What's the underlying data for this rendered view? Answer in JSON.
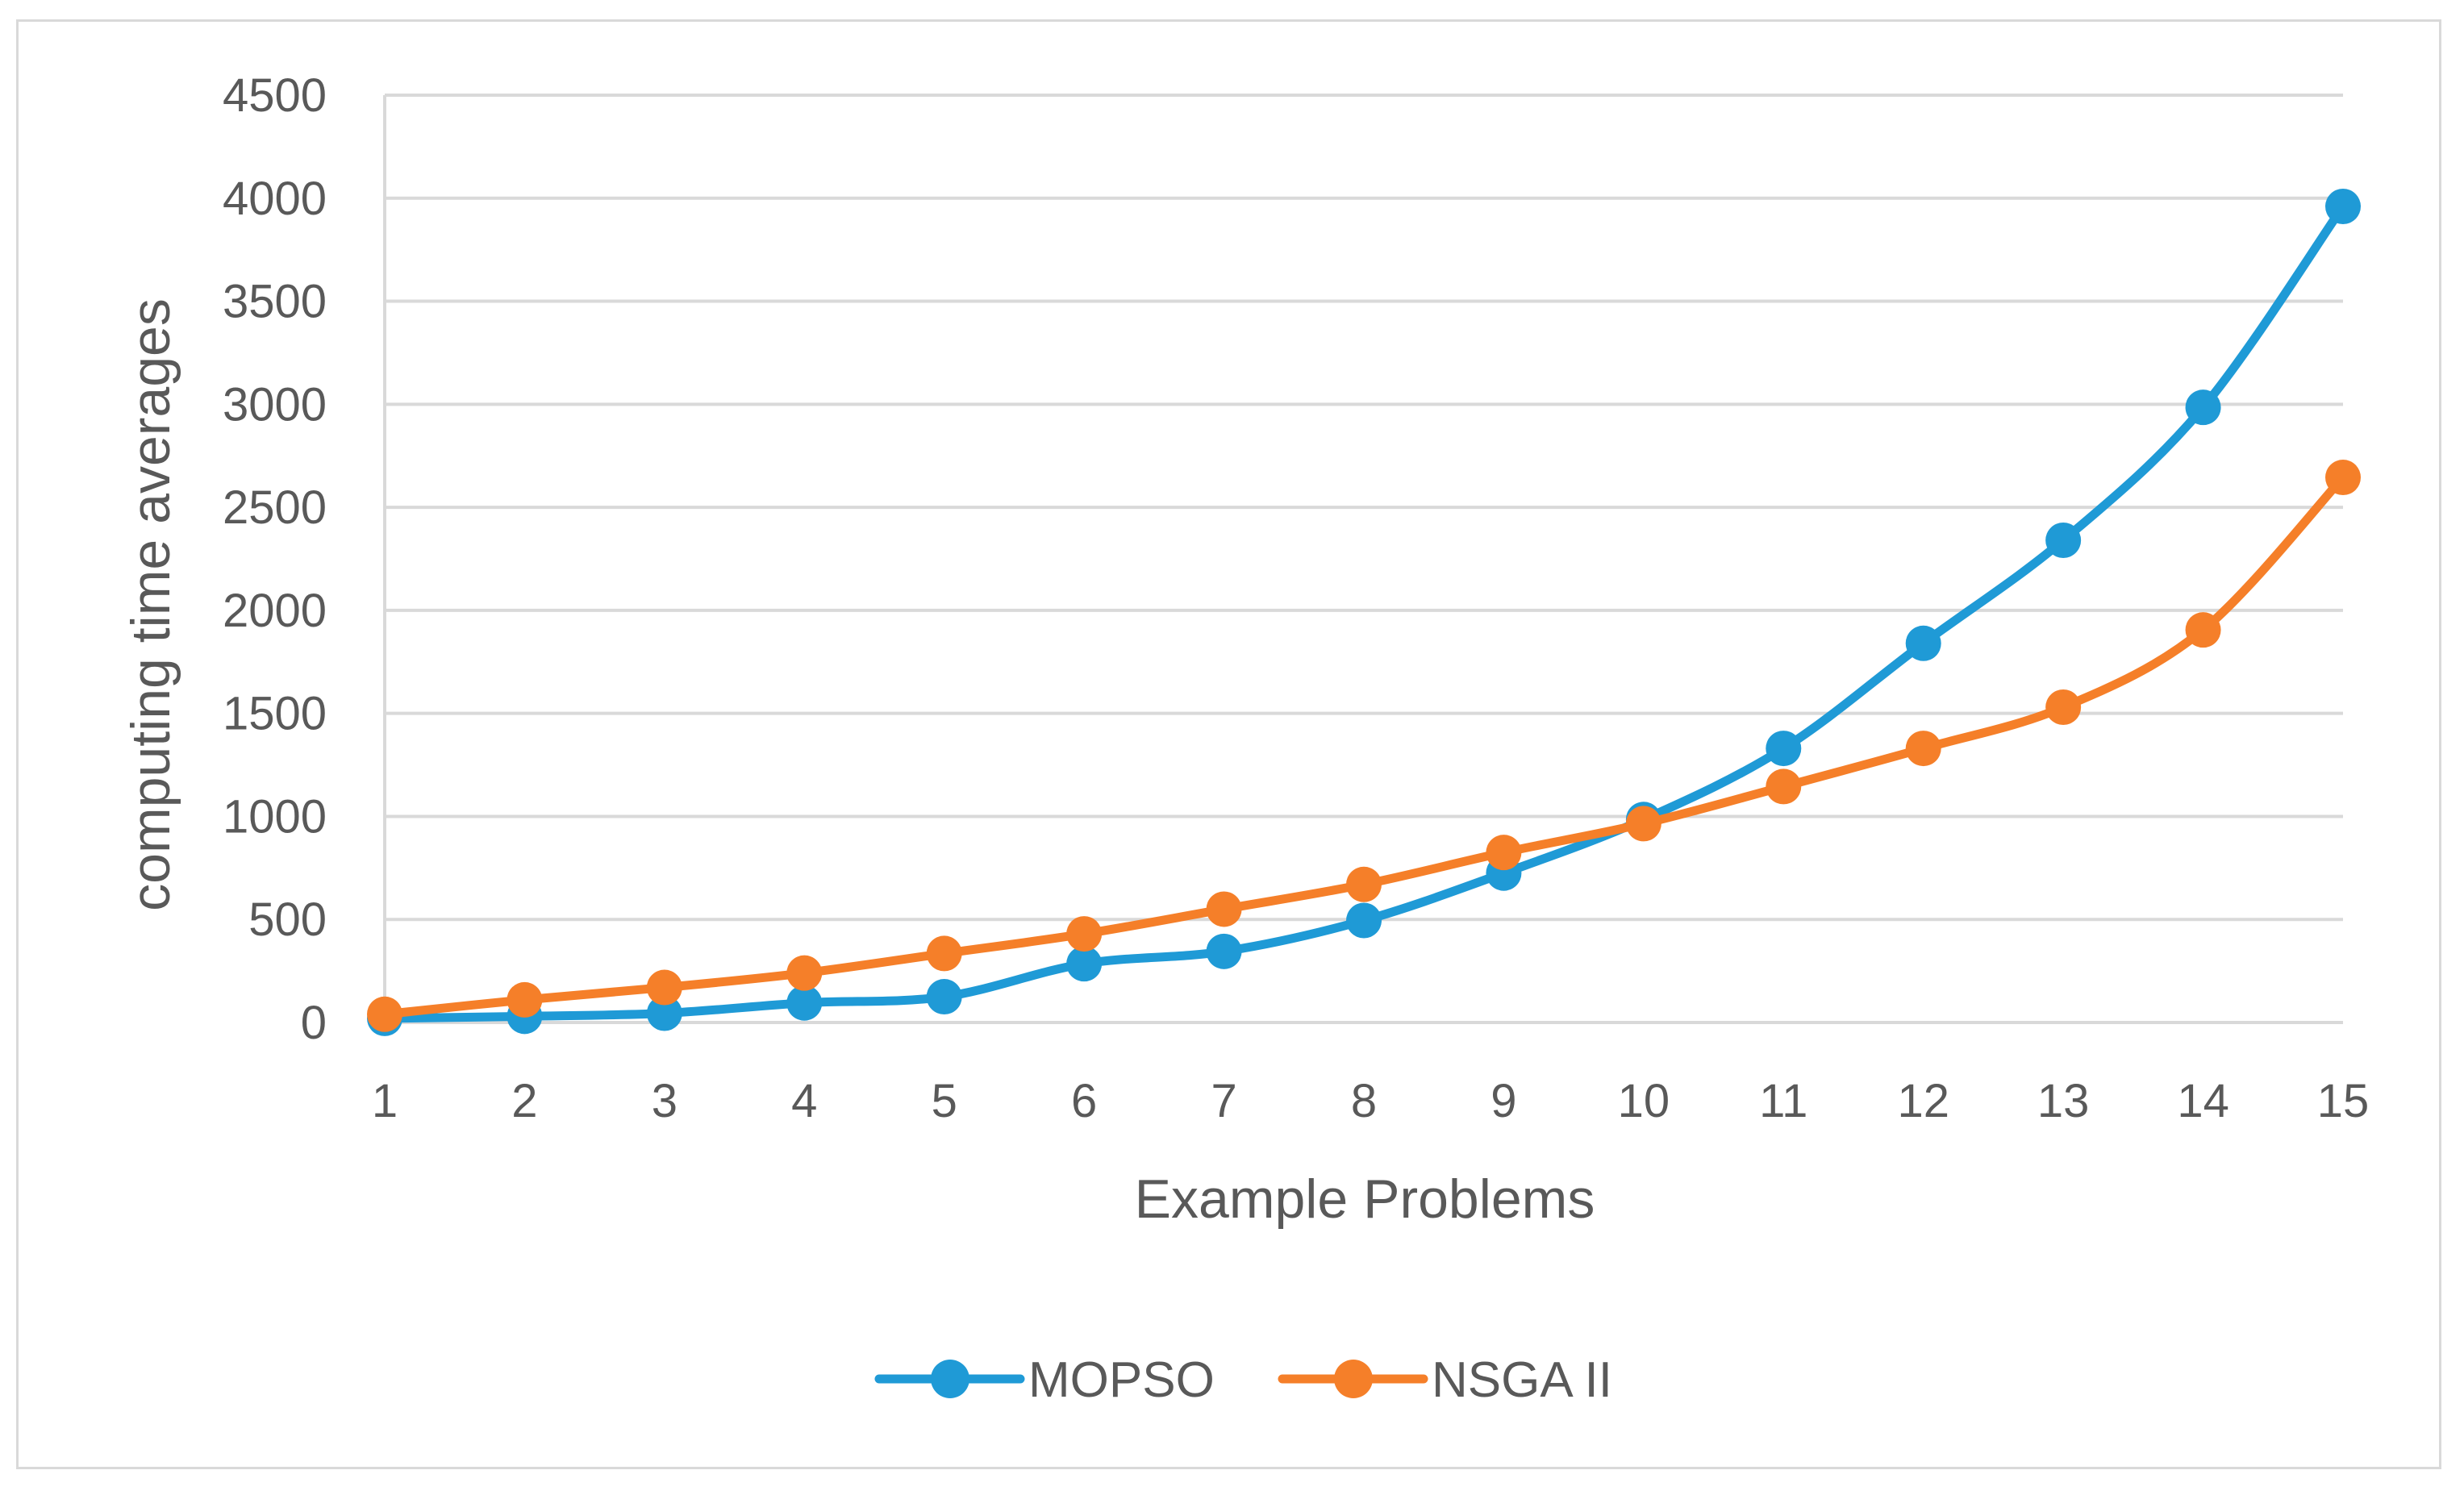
{
  "chart_data": {
    "type": "line",
    "title": "",
    "xlabel": "Example Problems",
    "ylabel": "computing time averages",
    "categories": [
      "1",
      "2",
      "3",
      "4",
      "5",
      "6",
      "7",
      "8",
      "9",
      "10",
      "11",
      "12",
      "13",
      "14",
      "15"
    ],
    "ylim": [
      0,
      4500
    ],
    "yticks": [
      0,
      500,
      1000,
      1500,
      2000,
      2500,
      3000,
      3500,
      4000,
      4500
    ],
    "grid": true,
    "smooth": true,
    "legend_position": "bottom",
    "series": [
      {
        "name": "MOPSO",
        "color": "#1f9ad6",
        "values": [
          20,
          30,
          45,
          95,
          125,
          285,
          345,
          495,
          725,
          985,
          1330,
          1840,
          2340,
          2985,
          3960
        ]
      },
      {
        "name": "NSGA II",
        "color": "#f57f29",
        "values": [
          40,
          110,
          170,
          240,
          335,
          430,
          550,
          670,
          825,
          965,
          1145,
          1330,
          1530,
          1905,
          2645
        ]
      }
    ]
  }
}
